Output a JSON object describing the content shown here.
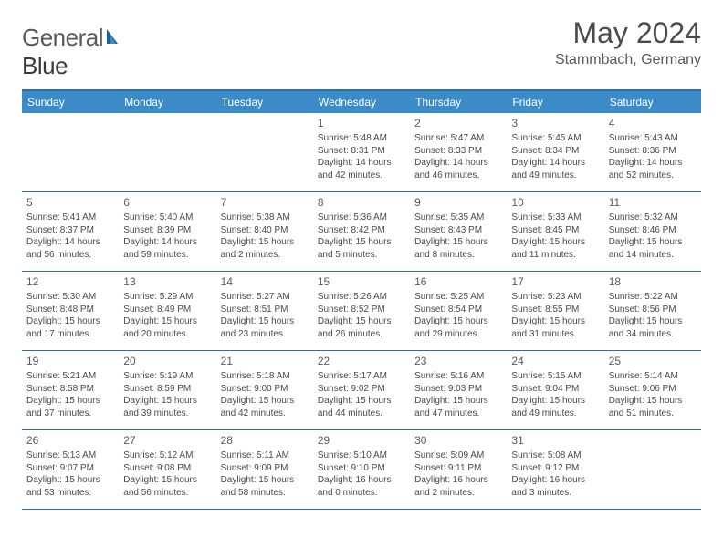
{
  "logo": {
    "part1": "General",
    "part2": "Blue"
  },
  "title": "May 2024",
  "location": "Stammbach, Germany",
  "colors": {
    "header_bar": "#3b8bc9",
    "header_top_border": "#2e6fa3",
    "week_divider": "#2e6fa3",
    "text": "#4a4a4a",
    "logo_blue": "#1d5f9c"
  },
  "weekdays": [
    "Sunday",
    "Monday",
    "Tuesday",
    "Wednesday",
    "Thursday",
    "Friday",
    "Saturday"
  ],
  "weeks": [
    [
      {
        "n": "",
        "sunrise": "",
        "sunset": "",
        "daylight": ""
      },
      {
        "n": "",
        "sunrise": "",
        "sunset": "",
        "daylight": ""
      },
      {
        "n": "",
        "sunrise": "",
        "sunset": "",
        "daylight": ""
      },
      {
        "n": "1",
        "sunrise": "Sunrise: 5:48 AM",
        "sunset": "Sunset: 8:31 PM",
        "daylight": "Daylight: 14 hours and 42 minutes."
      },
      {
        "n": "2",
        "sunrise": "Sunrise: 5:47 AM",
        "sunset": "Sunset: 8:33 PM",
        "daylight": "Daylight: 14 hours and 46 minutes."
      },
      {
        "n": "3",
        "sunrise": "Sunrise: 5:45 AM",
        "sunset": "Sunset: 8:34 PM",
        "daylight": "Daylight: 14 hours and 49 minutes."
      },
      {
        "n": "4",
        "sunrise": "Sunrise: 5:43 AM",
        "sunset": "Sunset: 8:36 PM",
        "daylight": "Daylight: 14 hours and 52 minutes."
      }
    ],
    [
      {
        "n": "5",
        "sunrise": "Sunrise: 5:41 AM",
        "sunset": "Sunset: 8:37 PM",
        "daylight": "Daylight: 14 hours and 56 minutes."
      },
      {
        "n": "6",
        "sunrise": "Sunrise: 5:40 AM",
        "sunset": "Sunset: 8:39 PM",
        "daylight": "Daylight: 14 hours and 59 minutes."
      },
      {
        "n": "7",
        "sunrise": "Sunrise: 5:38 AM",
        "sunset": "Sunset: 8:40 PM",
        "daylight": "Daylight: 15 hours and 2 minutes."
      },
      {
        "n": "8",
        "sunrise": "Sunrise: 5:36 AM",
        "sunset": "Sunset: 8:42 PM",
        "daylight": "Daylight: 15 hours and 5 minutes."
      },
      {
        "n": "9",
        "sunrise": "Sunrise: 5:35 AM",
        "sunset": "Sunset: 8:43 PM",
        "daylight": "Daylight: 15 hours and 8 minutes."
      },
      {
        "n": "10",
        "sunrise": "Sunrise: 5:33 AM",
        "sunset": "Sunset: 8:45 PM",
        "daylight": "Daylight: 15 hours and 11 minutes."
      },
      {
        "n": "11",
        "sunrise": "Sunrise: 5:32 AM",
        "sunset": "Sunset: 8:46 PM",
        "daylight": "Daylight: 15 hours and 14 minutes."
      }
    ],
    [
      {
        "n": "12",
        "sunrise": "Sunrise: 5:30 AM",
        "sunset": "Sunset: 8:48 PM",
        "daylight": "Daylight: 15 hours and 17 minutes."
      },
      {
        "n": "13",
        "sunrise": "Sunrise: 5:29 AM",
        "sunset": "Sunset: 8:49 PM",
        "daylight": "Daylight: 15 hours and 20 minutes."
      },
      {
        "n": "14",
        "sunrise": "Sunrise: 5:27 AM",
        "sunset": "Sunset: 8:51 PM",
        "daylight": "Daylight: 15 hours and 23 minutes."
      },
      {
        "n": "15",
        "sunrise": "Sunrise: 5:26 AM",
        "sunset": "Sunset: 8:52 PM",
        "daylight": "Daylight: 15 hours and 26 minutes."
      },
      {
        "n": "16",
        "sunrise": "Sunrise: 5:25 AM",
        "sunset": "Sunset: 8:54 PM",
        "daylight": "Daylight: 15 hours and 29 minutes."
      },
      {
        "n": "17",
        "sunrise": "Sunrise: 5:23 AM",
        "sunset": "Sunset: 8:55 PM",
        "daylight": "Daylight: 15 hours and 31 minutes."
      },
      {
        "n": "18",
        "sunrise": "Sunrise: 5:22 AM",
        "sunset": "Sunset: 8:56 PM",
        "daylight": "Daylight: 15 hours and 34 minutes."
      }
    ],
    [
      {
        "n": "19",
        "sunrise": "Sunrise: 5:21 AM",
        "sunset": "Sunset: 8:58 PM",
        "daylight": "Daylight: 15 hours and 37 minutes."
      },
      {
        "n": "20",
        "sunrise": "Sunrise: 5:19 AM",
        "sunset": "Sunset: 8:59 PM",
        "daylight": "Daylight: 15 hours and 39 minutes."
      },
      {
        "n": "21",
        "sunrise": "Sunrise: 5:18 AM",
        "sunset": "Sunset: 9:00 PM",
        "daylight": "Daylight: 15 hours and 42 minutes."
      },
      {
        "n": "22",
        "sunrise": "Sunrise: 5:17 AM",
        "sunset": "Sunset: 9:02 PM",
        "daylight": "Daylight: 15 hours and 44 minutes."
      },
      {
        "n": "23",
        "sunrise": "Sunrise: 5:16 AM",
        "sunset": "Sunset: 9:03 PM",
        "daylight": "Daylight: 15 hours and 47 minutes."
      },
      {
        "n": "24",
        "sunrise": "Sunrise: 5:15 AM",
        "sunset": "Sunset: 9:04 PM",
        "daylight": "Daylight: 15 hours and 49 minutes."
      },
      {
        "n": "25",
        "sunrise": "Sunrise: 5:14 AM",
        "sunset": "Sunset: 9:06 PM",
        "daylight": "Daylight: 15 hours and 51 minutes."
      }
    ],
    [
      {
        "n": "26",
        "sunrise": "Sunrise: 5:13 AM",
        "sunset": "Sunset: 9:07 PM",
        "daylight": "Daylight: 15 hours and 53 minutes."
      },
      {
        "n": "27",
        "sunrise": "Sunrise: 5:12 AM",
        "sunset": "Sunset: 9:08 PM",
        "daylight": "Daylight: 15 hours and 56 minutes."
      },
      {
        "n": "28",
        "sunrise": "Sunrise: 5:11 AM",
        "sunset": "Sunset: 9:09 PM",
        "daylight": "Daylight: 15 hours and 58 minutes."
      },
      {
        "n": "29",
        "sunrise": "Sunrise: 5:10 AM",
        "sunset": "Sunset: 9:10 PM",
        "daylight": "Daylight: 16 hours and 0 minutes."
      },
      {
        "n": "30",
        "sunrise": "Sunrise: 5:09 AM",
        "sunset": "Sunset: 9:11 PM",
        "daylight": "Daylight: 16 hours and 2 minutes."
      },
      {
        "n": "31",
        "sunrise": "Sunrise: 5:08 AM",
        "sunset": "Sunset: 9:12 PM",
        "daylight": "Daylight: 16 hours and 3 minutes."
      },
      {
        "n": "",
        "sunrise": "",
        "sunset": "",
        "daylight": ""
      }
    ]
  ]
}
